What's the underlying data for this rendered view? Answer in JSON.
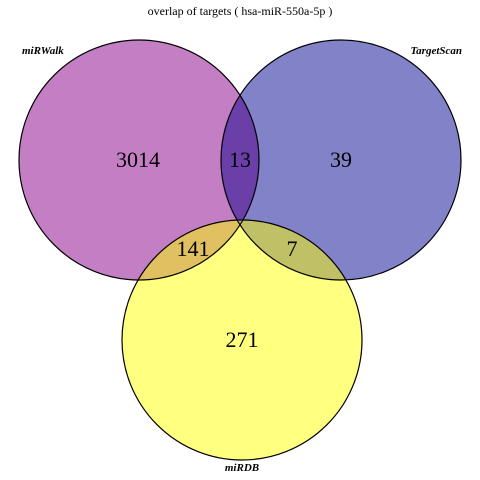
{
  "title": "overlap of targets ( hsa-miR-550a-5p )",
  "sets": [
    {
      "id": "mirwalk",
      "label": "miRWalk",
      "color": "#C47FC4"
    },
    {
      "id": "targetscan",
      "label": "TargetScan",
      "color": "#8282C8"
    },
    {
      "id": "mirdb",
      "label": "miRDB",
      "color": "#FFFF80"
    }
  ],
  "region_colors": {
    "mirwalk_targetscan": "#6A3FA8",
    "mirwalk_mirdb": "#E1C062",
    "targetscan_mirdb": "#C0C066"
  },
  "regions": {
    "mirwalk_only": "3014",
    "targetscan_only": "39",
    "mirdb_only": "271",
    "mirwalk_targetscan": "13",
    "mirwalk_mirdb": "141",
    "targetscan_mirdb": "7",
    "all_three": ""
  }
}
